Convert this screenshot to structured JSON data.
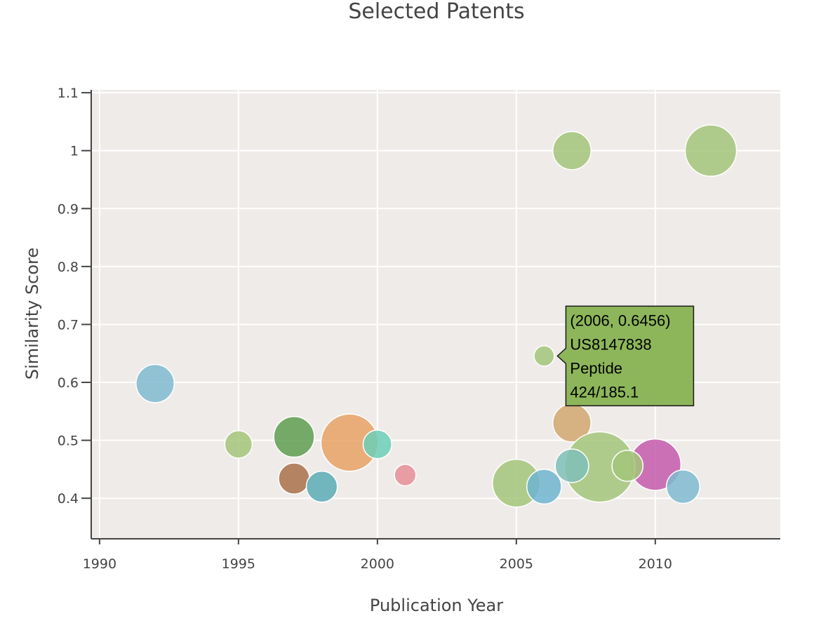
{
  "chart_data": {
    "type": "scatter",
    "title": "Selected Patents",
    "xlabel": "Publication Year",
    "ylabel": "Similarity Score",
    "xlim": [
      1989.7,
      2014.5
    ],
    "ylim": [
      0.33,
      1.105
    ],
    "xticks": [
      1990,
      1995,
      2000,
      2005,
      2010
    ],
    "yticks": [
      0.4,
      0.5,
      0.6,
      0.7,
      0.8,
      0.9,
      1,
      1.1
    ],
    "xtick_labels": [
      "1990",
      "1995",
      "2000",
      "2005",
      "2010"
    ],
    "ytick_labels": [
      "0.4",
      "0.5",
      "0.6",
      "0.7",
      "0.8",
      "0.9",
      "1",
      "1.1"
    ],
    "grid": true,
    "background_color": "#efebe8",
    "points": [
      {
        "x": 1992,
        "y": 0.598,
        "size": 32,
        "color": "#7fbbd0"
      },
      {
        "x": 1995,
        "y": 0.493,
        "size": 23,
        "color": "#a3c67a"
      },
      {
        "x": 1997,
        "y": 0.506,
        "size": 34,
        "color": "#5f9e50"
      },
      {
        "x": 1997,
        "y": 0.434,
        "size": 26,
        "color": "#a8714a"
      },
      {
        "x": 1998,
        "y": 0.42,
        "size": 26,
        "color": "#5aabb5"
      },
      {
        "x": 1999,
        "y": 0.496,
        "size": 48,
        "color": "#e8a266"
      },
      {
        "x": 2000,
        "y": 0.493,
        "size": 24,
        "color": "#6ccfb6"
      },
      {
        "x": 2001,
        "y": 0.44,
        "size": 18,
        "color": "#e68e96"
      },
      {
        "x": 2005,
        "y": 0.426,
        "size": 40,
        "color": "#a3c67a"
      },
      {
        "x": 2006,
        "y": 0.42,
        "size": 29,
        "color": "#6fb5d0"
      },
      {
        "x": 2006,
        "y": 0.6456,
        "size": 17,
        "color": "#a3c67a"
      },
      {
        "x": 2007,
        "y": 1.0,
        "size": 32,
        "color": "#a3c67a"
      },
      {
        "x": 2007,
        "y": 0.53,
        "size": 32,
        "color": "#d1a76e"
      },
      {
        "x": 2010,
        "y": 0.458,
        "size": 43,
        "color": "#c65bab"
      },
      {
        "x": 2008,
        "y": 0.454,
        "size": 59,
        "color": "#a3c67a"
      },
      {
        "x": 2007,
        "y": 0.456,
        "size": 28,
        "color": "#7fbfb8"
      },
      {
        "x": 2009,
        "y": 0.456,
        "size": 26,
        "color": "#a3c67a"
      },
      {
        "x": 2011,
        "y": 0.42,
        "size": 28,
        "color": "#7fbbd0"
      },
      {
        "x": 2012,
        "y": 1.0,
        "size": 43,
        "color": "#a3c67a"
      }
    ],
    "tooltip": {
      "x": 2006,
      "y": 0.6456,
      "lines": [
        "(2006, 0.6456)",
        "US8147838",
        "Peptide",
        "424/185.1"
      ],
      "color": "#8db65a"
    }
  }
}
